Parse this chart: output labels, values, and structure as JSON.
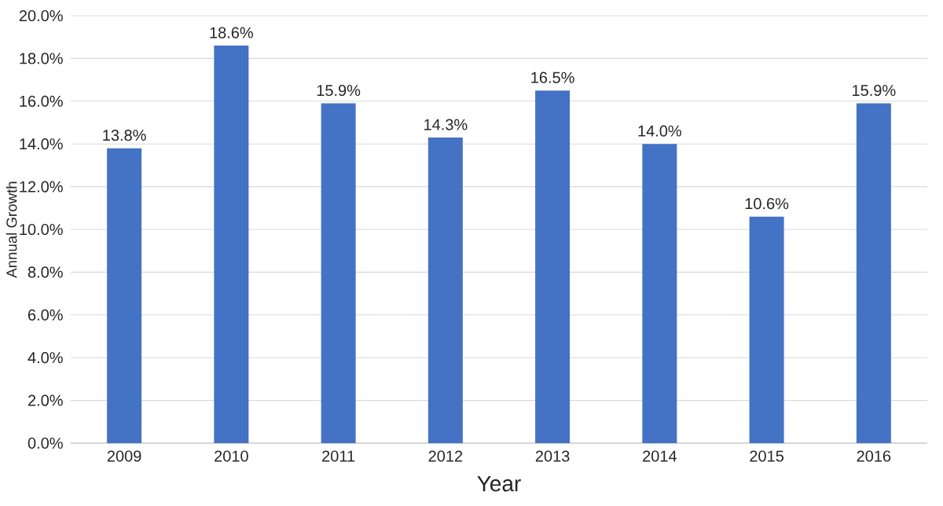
{
  "chart_data": {
    "type": "bar",
    "xlabel": "Year",
    "ylabel": "Annual Growth",
    "categories": [
      "2009",
      "2010",
      "2011",
      "2012",
      "2013",
      "2014",
      "2015",
      "2016"
    ],
    "values": [
      13.8,
      18.6,
      15.9,
      14.3,
      16.5,
      14.0,
      10.6,
      15.9
    ],
    "value_labels": [
      "13.8%",
      "18.6%",
      "15.9%",
      "14.3%",
      "16.5%",
      "14.0%",
      "10.6%",
      "15.9%"
    ],
    "color": "#4472c4",
    "ylim": [
      0,
      20
    ],
    "yticks": [
      {
        "value": 0,
        "label": "0.0%"
      },
      {
        "value": 2,
        "label": "2.0%"
      },
      {
        "value": 4,
        "label": "4.0%"
      },
      {
        "value": 6,
        "label": "6.0%"
      },
      {
        "value": 8,
        "label": "8.0%"
      },
      {
        "value": 10,
        "label": "10.0%"
      },
      {
        "value": 12,
        "label": "12.0%"
      },
      {
        "value": 14,
        "label": "14.0%"
      },
      {
        "value": 16,
        "label": "16.0%"
      },
      {
        "value": 18,
        "label": "18.0%"
      },
      {
        "value": 20,
        "label": "20.0%"
      }
    ],
    "grid": "y"
  }
}
